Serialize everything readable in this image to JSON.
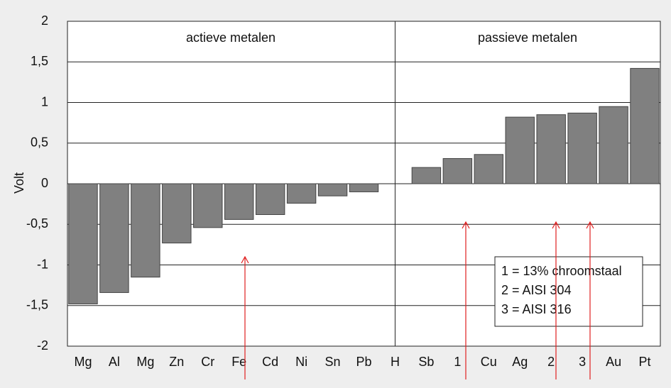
{
  "chart_data": {
    "type": "bar",
    "y_label": "Volt",
    "categories": [
      "Mg",
      "Al",
      "Mg",
      "Zn",
      "Cr",
      "Fe",
      "Cd",
      "Ni",
      "Sn",
      "Pb",
      "H",
      "Sb",
      "1",
      "Cu",
      "Ag",
      "2",
      "3",
      "Au",
      "Pt"
    ],
    "values": [
      -1.48,
      -1.34,
      -1.15,
      -0.73,
      -0.54,
      -0.44,
      -0.38,
      -0.24,
      -0.15,
      -0.1,
      0,
      0.2,
      0.31,
      0.36,
      0.82,
      0.85,
      0.87,
      0.95,
      1.42
    ],
    "color": "#808080",
    "ylim": [
      -2,
      2
    ],
    "yticks": [
      -2,
      {
        "value": -1.5,
        "label": "-1,5"
      },
      -1,
      {
        "value": -0.5,
        "label": "-0,5"
      },
      0,
      {
        "value": 0.5,
        "label": "0,5"
      },
      1,
      {
        "value": 1.5,
        "label": "1,5"
      },
      2
    ],
    "grid": true,
    "annotations": [
      "actieve metalen",
      "passieve metalen"
    ],
    "legend_lines": [
      "1 = 13% chroomstaal",
      "2 = AISI 304",
      "3 = AISI 316"
    ]
  }
}
